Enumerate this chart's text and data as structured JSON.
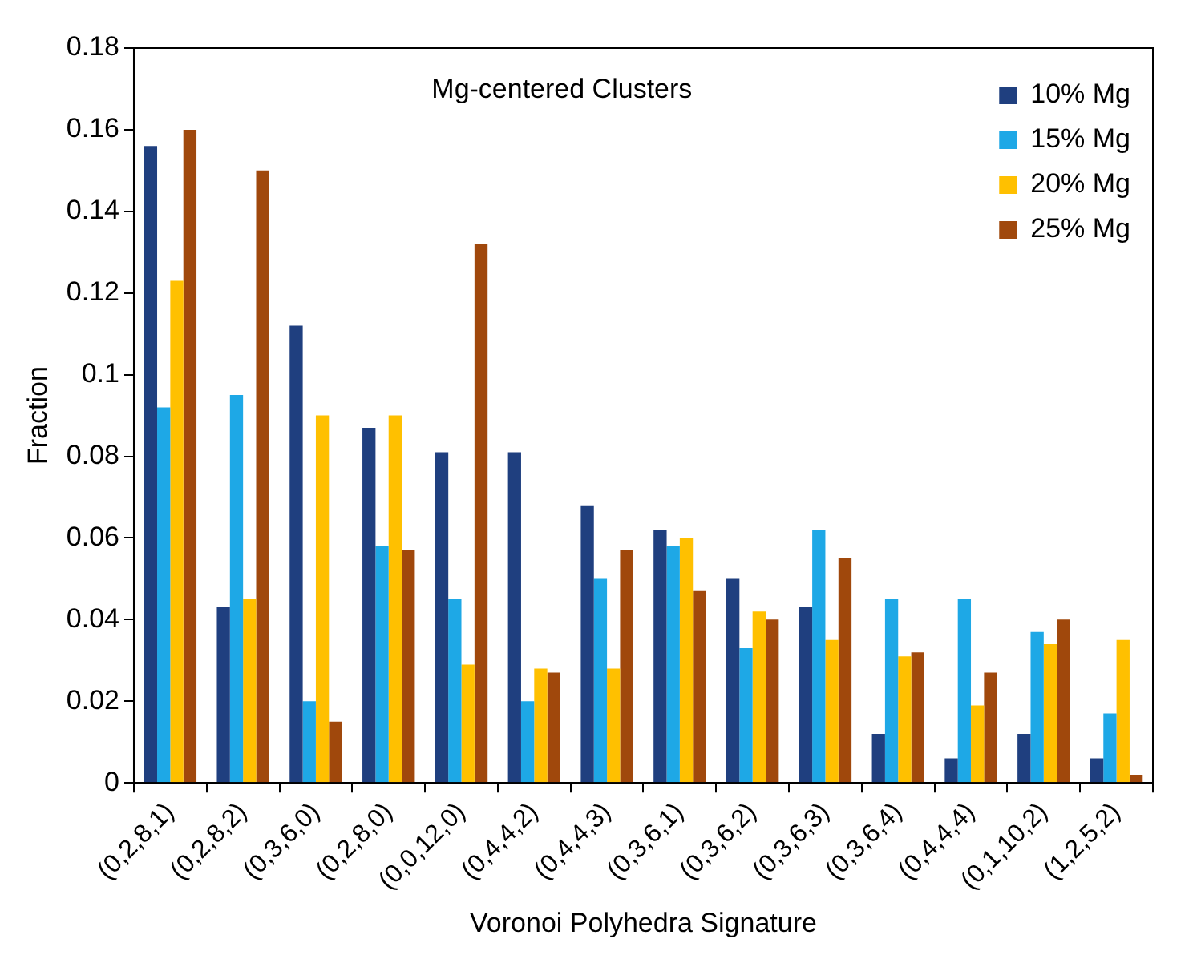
{
  "chart_data": {
    "type": "bar",
    "title": "Mg-centered Clusters",
    "xlabel": "Voronoi Polyhedra Signature",
    "ylabel": "Fraction",
    "categories": [
      "(0,2,8,1)",
      "(0,2,8,2)",
      "(0,3,6,0)",
      "(0,2,8,0)",
      "(0,0,12,0)",
      "(0,4,4,2)",
      "(0,4,4,3)",
      "(0,3,6,1)",
      "(0,3,6,2)",
      "(0,3,6,3)",
      "(0,3,6,4)",
      "(0,4,4,4)",
      "(0,1,10,2)",
      "(1,2,5,2)"
    ],
    "series": [
      {
        "name": "10% Mg",
        "color": "#1f3f7f",
        "values": [
          0.156,
          0.043,
          0.112,
          0.087,
          0.081,
          0.081,
          0.068,
          0.062,
          0.05,
          0.043,
          0.012,
          0.006,
          0.012,
          0.006
        ]
      },
      {
        "name": "15% Mg",
        "color": "#1ea8e6",
        "values": [
          0.092,
          0.095,
          0.02,
          0.058,
          0.045,
          0.02,
          0.05,
          0.058,
          0.033,
          0.062,
          0.045,
          0.045,
          0.037,
          0.017
        ]
      },
      {
        "name": "20% Mg",
        "color": "#ffc000",
        "values": [
          0.123,
          0.045,
          0.09,
          0.09,
          0.029,
          0.028,
          0.028,
          0.06,
          0.042,
          0.035,
          0.031,
          0.019,
          0.034,
          0.035
        ]
      },
      {
        "name": "25% Mg",
        "color": "#a0480c",
        "values": [
          0.16,
          0.15,
          0.015,
          0.057,
          0.132,
          0.027,
          0.057,
          0.047,
          0.04,
          0.055,
          0.032,
          0.027,
          0.04,
          0.002
        ]
      }
    ],
    "ylim": [
      0,
      0.18
    ],
    "yticks": [
      0,
      0.02,
      0.04,
      0.06,
      0.08,
      0.1,
      0.12,
      0.14,
      0.16,
      0.18
    ],
    "grid": false,
    "legend": "top right"
  }
}
